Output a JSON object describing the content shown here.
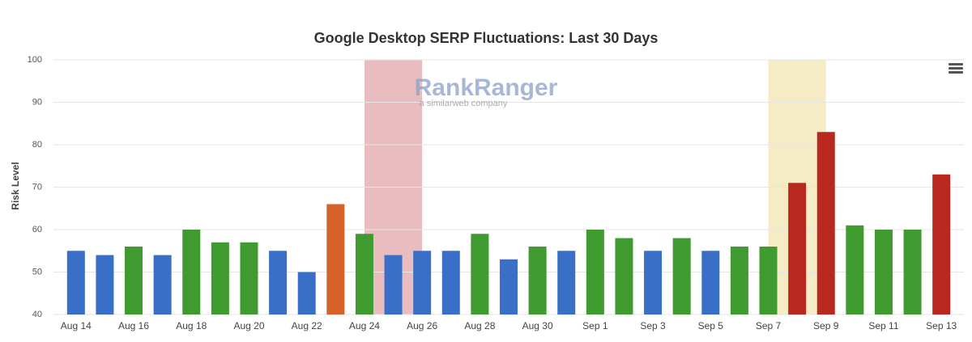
{
  "chart_data": {
    "type": "bar",
    "title": "Google Desktop SERP Fluctuations: Last 30 Days",
    "y_label": "Risk Level",
    "watermark": {
      "brand": "RankRanger",
      "tagline": "a similarweb company"
    },
    "categories": [
      "Aug 14",
      null,
      "Aug 16",
      null,
      "Aug 18",
      null,
      "Aug 20",
      null,
      "Aug 22",
      null,
      "Aug 24",
      null,
      "Aug 26",
      null,
      "Aug 28",
      null,
      "Aug 30",
      null,
      "Sep 1",
      null,
      "Sep 3",
      null,
      "Sep 5",
      null,
      "Sep 7",
      null,
      "Sep 9",
      null,
      "Sep 11",
      null,
      "Sep 13"
    ],
    "values": [
      55,
      54,
      56,
      54,
      60,
      57,
      57,
      55,
      50,
      66,
      59,
      54,
      55,
      55,
      59,
      53,
      56,
      55,
      60,
      58,
      55,
      58,
      55,
      56,
      56,
      71,
      83,
      61,
      60,
      60,
      73
    ],
    "colors": [
      "#3a6fc8",
      "#3a6fc8",
      "#3f9a30",
      "#3a6fc8",
      "#3f9a30",
      "#3f9a30",
      "#3f9a30",
      "#3a6fc8",
      "#3a6fc8",
      "#d4622a",
      "#3f9a30",
      "#3a6fc8",
      "#3a6fc8",
      "#3a6fc8",
      "#3f9a30",
      "#3a6fc8",
      "#3f9a30",
      "#3a6fc8",
      "#3f9a30",
      "#3f9a30",
      "#3a6fc8",
      "#3f9a30",
      "#3a6fc8",
      "#3f9a30",
      "#3f9a30",
      "#b8281f",
      "#b8281f",
      "#3f9a30",
      "#3f9a30",
      "#3f9a30",
      "#b8281f"
    ],
    "plot_bands": [
      {
        "from": 10,
        "to": 12,
        "color": "#e9bcc0"
      },
      {
        "from": 24,
        "to": 26,
        "color": "#f5ecc6"
      }
    ],
    "ylim": [
      40,
      100
    ],
    "yticks": [
      40,
      50,
      60,
      70,
      80,
      90,
      100
    ],
    "grid": true
  }
}
